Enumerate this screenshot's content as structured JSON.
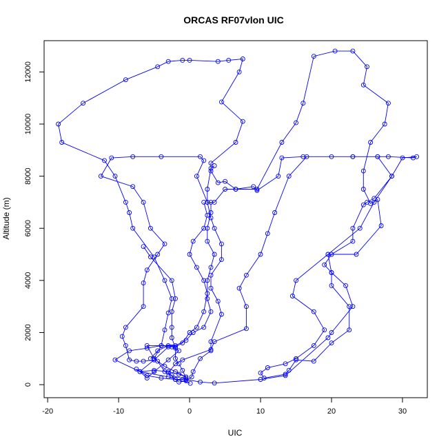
{
  "chart_data": {
    "type": "line",
    "title": "ORCAS RF07vlon UIC",
    "xlabel": "UIC",
    "ylabel": "Altitude (m)",
    "xlim": [
      -20.5,
      33.5
    ],
    "ylim": [
      -500,
      13200
    ],
    "xticks": [
      -20,
      -10,
      0,
      10,
      20,
      30
    ],
    "yticks": [
      0,
      2000,
      4000,
      6000,
      8000,
      10000,
      12000
    ],
    "grid": false,
    "legend": "none",
    "series": [
      {
        "color": "#0000ff",
        "marker": "open-circle",
        "points": [
          [
            0.1,
            50
          ],
          [
            -3,
            300
          ],
          [
            -7,
            500
          ],
          [
            -10.5,
            950
          ],
          [
            -8.5,
            1300
          ],
          [
            -6,
            1400
          ],
          [
            -4,
            1500
          ],
          [
            -2.5,
            1450
          ],
          [
            -1.5,
            1300
          ],
          [
            -3,
            950
          ],
          [
            -5,
            500
          ],
          [
            -6,
            250
          ],
          [
            -7,
            500
          ],
          [
            -5,
            950
          ],
          [
            -3,
            1450
          ],
          [
            -5,
            950
          ],
          [
            -6.5,
            900
          ],
          [
            -7.5,
            900
          ],
          [
            -8.5,
            950
          ],
          [
            -9,
            1500
          ],
          [
            -9.5,
            1850
          ],
          [
            -9,
            2200
          ],
          [
            -6.5,
            3000
          ],
          [
            -6.5,
            3900
          ],
          [
            -6,
            4400
          ],
          [
            -4.5,
            5000
          ],
          [
            -3.5,
            5400
          ],
          [
            -5.5,
            6000
          ],
          [
            -6.5,
            7000
          ],
          [
            -8,
            7600
          ],
          [
            -12.5,
            8000
          ],
          [
            -11,
            8700
          ],
          [
            -8,
            8750
          ],
          [
            -4,
            8750
          ],
          [
            1.5,
            8750
          ],
          [
            2,
            8600
          ],
          [
            1,
            8000
          ],
          [
            2.5,
            7000
          ],
          [
            3.5,
            7000
          ],
          [
            5,
            7500
          ],
          [
            6.5,
            7500
          ],
          [
            9,
            7600
          ],
          [
            9.5,
            7450
          ],
          [
            12.5,
            8000
          ],
          [
            13,
            8700
          ],
          [
            16,
            8750
          ],
          [
            20,
            8750
          ],
          [
            23,
            8750
          ],
          [
            26.5,
            8750
          ],
          [
            28,
            8750
          ],
          [
            31.5,
            8700
          ],
          [
            32,
            8750
          ],
          [
            30,
            8700
          ],
          [
            28.5,
            8000
          ],
          [
            26,
            7150
          ],
          [
            25,
            7000
          ],
          [
            24.5,
            6900
          ],
          [
            23,
            6000
          ],
          [
            23,
            5500
          ],
          [
            20,
            5000
          ],
          [
            19,
            4600
          ],
          [
            20,
            4300
          ],
          [
            20,
            3800
          ],
          [
            22.5,
            3000
          ],
          [
            22.5,
            2100
          ],
          [
            20,
            1600
          ],
          [
            17.5,
            900
          ],
          [
            15,
            950
          ],
          [
            14,
            550
          ],
          [
            13.5,
            400
          ],
          [
            10.5,
            250
          ],
          [
            10,
            450
          ],
          [
            11,
            650
          ],
          [
            13.5,
            800
          ],
          [
            15,
            1000
          ],
          [
            17.5,
            1500
          ],
          [
            19,
            2100
          ],
          [
            17.5,
            2800
          ],
          [
            14.5,
            3400
          ],
          [
            15,
            4000
          ],
          [
            19.5,
            5000
          ],
          [
            23.5,
            5000
          ],
          [
            27,
            6100
          ],
          [
            26.5,
            7100
          ],
          [
            25.5,
            6950
          ],
          [
            24.5,
            7500
          ],
          [
            24.5,
            8200
          ],
          [
            25.5,
            9300
          ],
          [
            27.5,
            10000
          ],
          [
            28,
            10800
          ],
          [
            24.5,
            11500
          ],
          [
            25,
            12200
          ],
          [
            23,
            12800
          ],
          [
            20.5,
            12800
          ],
          [
            17.5,
            12600
          ],
          [
            16,
            10800
          ],
          [
            15,
            10050
          ],
          [
            13,
            9300
          ],
          [
            9.5,
            7500
          ],
          [
            6.5,
            7500
          ],
          [
            5,
            7800
          ],
          [
            4,
            7750
          ],
          [
            3,
            8200
          ],
          [
            3,
            8500
          ],
          [
            6.5,
            9300
          ],
          [
            7.5,
            10100
          ],
          [
            4.5,
            10850
          ],
          [
            7,
            12000
          ],
          [
            7.5,
            12500
          ],
          [
            5.5,
            12450
          ],
          [
            4,
            12400
          ],
          [
            0,
            12450
          ],
          [
            -1,
            12450
          ],
          [
            -3,
            12400
          ],
          [
            -4.5,
            12200
          ],
          [
            -9,
            11700
          ],
          [
            -15,
            10800
          ],
          [
            -18.5,
            10000
          ],
          [
            -18,
            9300
          ],
          [
            -12,
            8600
          ],
          [
            -10.5,
            8000
          ],
          [
            -9,
            7000
          ],
          [
            -8.5,
            6600
          ],
          [
            -8,
            6000
          ],
          [
            -5,
            4900
          ],
          [
            -3.5,
            4000
          ],
          [
            -2.5,
            3300
          ],
          [
            -3,
            2750
          ],
          [
            -3.5,
            2100
          ],
          [
            -4,
            1500
          ],
          [
            -5,
            1000
          ],
          [
            -4.5,
            900
          ],
          [
            -3.5,
            500
          ],
          [
            -2.5,
            350
          ],
          [
            -0.5,
            200
          ],
          [
            1.5,
            100
          ],
          [
            3.5,
            60
          ],
          [
            10,
            200
          ],
          [
            13.5,
            350
          ],
          [
            19.5,
            1800
          ],
          [
            20,
            2000
          ],
          [
            23,
            3000
          ],
          [
            22,
            3800
          ],
          [
            20,
            4300
          ],
          [
            19.5,
            5000
          ],
          [
            24,
            6000
          ],
          [
            26,
            7000
          ],
          [
            28.5,
            8000
          ],
          [
            26.5,
            8750
          ],
          [
            23,
            8750
          ],
          [
            16.5,
            8750
          ],
          [
            14,
            8000
          ],
          [
            12,
            6600
          ],
          [
            11,
            5800
          ],
          [
            10,
            5000
          ],
          [
            8,
            4200
          ],
          [
            7,
            3700
          ],
          [
            8,
            3000
          ],
          [
            8,
            2150
          ],
          [
            3.5,
            1650
          ],
          [
            3,
            1350
          ],
          [
            -1,
            950
          ],
          [
            -2,
            800
          ],
          [
            -3,
            450
          ],
          [
            -2,
            200
          ],
          [
            -1.5,
            100
          ],
          [
            -0.5,
            150
          ],
          [
            0.3,
            300
          ],
          [
            0.5,
            500
          ],
          [
            1.5,
            1000
          ],
          [
            3,
            1300
          ],
          [
            3,
            1650
          ],
          [
            4.5,
            2700
          ],
          [
            4,
            3200
          ],
          [
            3,
            3700
          ],
          [
            3,
            4200
          ],
          [
            4.5,
            4800
          ],
          [
            4.5,
            5400
          ],
          [
            3.5,
            6000
          ],
          [
            3,
            6400
          ],
          [
            2.5,
            7000
          ],
          [
            2.5,
            7500
          ],
          [
            3,
            8300
          ],
          [
            3.5,
            8400
          ]
        ]
      },
      {
        "color": "#0000ff",
        "marker": "open-circle",
        "points": [
          [
            -7,
            500
          ],
          [
            -5,
            550
          ],
          [
            -3,
            500
          ],
          [
            -1.5,
            400
          ],
          [
            -0.5,
            300
          ],
          [
            -2,
            500
          ],
          [
            -3.5,
            700
          ],
          [
            -5,
            1000
          ],
          [
            -6,
            1500
          ],
          [
            -4,
            1500
          ],
          [
            -2,
            1500
          ],
          [
            -0.5,
            1700
          ],
          [
            0.5,
            2000
          ],
          [
            2,
            2200
          ],
          [
            3,
            2800
          ],
          [
            2.5,
            3300
          ],
          [
            2.5,
            4000
          ],
          [
            3,
            4500
          ],
          [
            3.5,
            5000
          ],
          [
            2.5,
            5500
          ],
          [
            2.5,
            6000
          ],
          [
            3,
            6600
          ],
          [
            3,
            7000
          ]
        ]
      },
      {
        "color": "#0000ff",
        "marker": "open-circle",
        "points": [
          [
            -5.5,
            1000
          ],
          [
            -4.5,
            1300
          ],
          [
            -3,
            1500
          ],
          [
            -2,
            1450
          ],
          [
            -1,
            1600
          ],
          [
            0,
            2000
          ],
          [
            1,
            2200
          ],
          [
            2,
            2800
          ],
          [
            2.5,
            3500
          ],
          [
            2,
            4000
          ],
          [
            1,
            4500
          ],
          [
            0,
            5000
          ],
          [
            0.5,
            5500
          ],
          [
            2,
            6000
          ],
          [
            2.5,
            6500
          ],
          [
            2,
            7000
          ]
        ]
      },
      {
        "color": "#0000ff",
        "marker": "open-circle",
        "points": [
          [
            -7.5,
            600
          ],
          [
            -6,
            350
          ],
          [
            -4,
            250
          ],
          [
            -2,
            200
          ],
          [
            -1,
            200
          ],
          [
            -0.5,
            250
          ],
          [
            -1,
            550
          ],
          [
            -1.5,
            800
          ],
          [
            -2,
            1000
          ],
          [
            -2,
            1400
          ],
          [
            -2.5,
            1800
          ],
          [
            -2.5,
            2200
          ],
          [
            -2.5,
            2800
          ],
          [
            -2,
            3300
          ],
          [
            -2.5,
            4000
          ],
          [
            -5.5,
            4900
          ],
          [
            -6.5,
            5300
          ]
        ]
      }
    ]
  }
}
